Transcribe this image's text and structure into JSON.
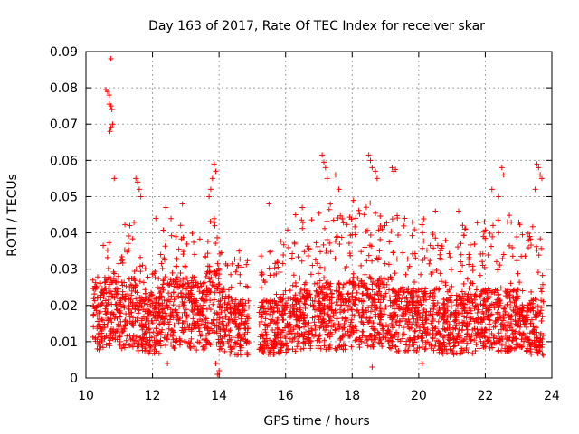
{
  "chart_data": {
    "type": "scatter",
    "title": "Day 163 of 2017, Rate Of TEC Index for receiver skar",
    "xlabel": "GPS time / hours",
    "ylabel": "ROTI / TECUs",
    "xlim": [
      10,
      24
    ],
    "ylim": [
      0,
      0.09
    ],
    "xticks": [
      "10",
      "12",
      "14",
      "16",
      "18",
      "20",
      "22",
      "24"
    ],
    "yticks": [
      "0",
      "0.01",
      "0.02",
      "0.03",
      "0.04",
      "0.05",
      "0.06",
      "0.07",
      "0.08",
      "0.09"
    ],
    "grid": true,
    "marker": "+",
    "color": "#ff0000",
    "data_window": [
      10.2,
      23.75
    ],
    "sparse_points": [
      [
        10.6,
        0.0795
      ],
      [
        10.65,
        0.079
      ],
      [
        10.7,
        0.078
      ],
      [
        10.75,
        0.088
      ],
      [
        10.7,
        0.0755
      ],
      [
        10.75,
        0.075
      ],
      [
        10.78,
        0.074
      ],
      [
        10.72,
        0.068
      ],
      [
        10.75,
        0.069
      ],
      [
        10.8,
        0.07
      ],
      [
        10.85,
        0.055
      ],
      [
        11.5,
        0.055
      ],
      [
        11.55,
        0.054
      ],
      [
        11.6,
        0.052
      ],
      [
        11.65,
        0.05
      ],
      [
        13.85,
        0.059
      ],
      [
        13.9,
        0.057
      ],
      [
        13.8,
        0.055
      ],
      [
        13.75,
        0.052
      ],
      [
        13.7,
        0.05
      ],
      [
        15.5,
        0.048
      ],
      [
        17.1,
        0.0615
      ],
      [
        17.15,
        0.0595
      ],
      [
        17.2,
        0.058
      ],
      [
        17.25,
        0.055
      ],
      [
        17.5,
        0.056
      ],
      [
        17.6,
        0.052
      ],
      [
        18.5,
        0.0615
      ],
      [
        18.55,
        0.06
      ],
      [
        18.6,
        0.058
      ],
      [
        18.7,
        0.057
      ],
      [
        18.75,
        0.055
      ],
      [
        19.2,
        0.058
      ],
      [
        19.25,
        0.057
      ],
      [
        19.3,
        0.0575
      ],
      [
        22.5,
        0.058
      ],
      [
        22.55,
        0.056
      ],
      [
        22.2,
        0.052
      ],
      [
        23.55,
        0.059
      ],
      [
        23.6,
        0.058
      ],
      [
        23.65,
        0.056
      ],
      [
        23.7,
        0.055
      ],
      [
        22.4,
        0.05
      ],
      [
        21.2,
        0.046
      ],
      [
        20.5,
        0.046
      ],
      [
        23.5,
        0.052
      ],
      [
        16.5,
        0.047
      ],
      [
        16.3,
        0.045
      ],
      [
        14.6,
        0.035
      ],
      [
        12.1,
        0.044
      ],
      [
        12.4,
        0.047
      ],
      [
        12.9,
        0.048
      ],
      [
        13.95,
        0.001
      ],
      [
        14.0,
        0.002
      ],
      [
        13.9,
        0.004
      ],
      [
        12.45,
        0.004
      ],
      [
        18.6,
        0.003
      ],
      [
        20.1,
        0.004
      ]
    ],
    "bands": [
      {
        "x": [
          10.2,
          10.5
        ],
        "ymed": 0.017,
        "ymax": 0.028
      },
      {
        "x": [
          10.5,
          11.0
        ],
        "ymed": 0.018,
        "ymax": 0.038
      },
      {
        "x": [
          11.0,
          11.5
        ],
        "ymed": 0.018,
        "ymax": 0.043
      },
      {
        "x": [
          11.5,
          11.8
        ],
        "ymed": 0.016,
        "ymax": 0.035
      },
      {
        "x": [
          11.8,
          12.2
        ],
        "ymed": 0.015,
        "ymax": 0.03
      },
      {
        "x": [
          12.2,
          12.7
        ],
        "ymed": 0.018,
        "ymax": 0.044
      },
      {
        "x": [
          12.7,
          13.2
        ],
        "ymed": 0.018,
        "ymax": 0.043
      },
      {
        "x": [
          13.2,
          13.6
        ],
        "ymed": 0.017,
        "ymax": 0.04
      },
      {
        "x": [
          13.6,
          14.0
        ],
        "ymed": 0.02,
        "ymax": 0.049
      },
      {
        "x": [
          14.0,
          14.3
        ],
        "ymed": 0.016,
        "ymax": 0.035
      },
      {
        "x": [
          14.3,
          14.9
        ],
        "ymed": 0.014,
        "ymax": 0.033
      },
      {
        "x": [
          15.2,
          15.7
        ],
        "ymed": 0.014,
        "ymax": 0.035
      },
      {
        "x": [
          15.7,
          16.3
        ],
        "ymed": 0.015,
        "ymax": 0.041
      },
      {
        "x": [
          16.3,
          16.9
        ],
        "ymed": 0.016,
        "ymax": 0.044
      },
      {
        "x": [
          16.9,
          17.5
        ],
        "ymed": 0.017,
        "ymax": 0.048
      },
      {
        "x": [
          17.5,
          18.0
        ],
        "ymed": 0.017,
        "ymax": 0.045
      },
      {
        "x": [
          18.0,
          18.6
        ],
        "ymed": 0.018,
        "ymax": 0.049
      },
      {
        "x": [
          18.6,
          19.2
        ],
        "ymed": 0.018,
        "ymax": 0.047
      },
      {
        "x": [
          19.2,
          19.8
        ],
        "ymed": 0.016,
        "ymax": 0.045
      },
      {
        "x": [
          19.8,
          20.5
        ],
        "ymed": 0.016,
        "ymax": 0.044
      },
      {
        "x": [
          20.5,
          21.1
        ],
        "ymed": 0.014,
        "ymax": 0.04
      },
      {
        "x": [
          21.1,
          21.8
        ],
        "ymed": 0.015,
        "ymax": 0.043
      },
      {
        "x": [
          21.8,
          22.4
        ],
        "ymed": 0.016,
        "ymax": 0.045
      },
      {
        "x": [
          22.4,
          23.0
        ],
        "ymed": 0.016,
        "ymax": 0.047
      },
      {
        "x": [
          23.0,
          23.75
        ],
        "ymed": 0.014,
        "ymax": 0.045
      }
    ]
  }
}
